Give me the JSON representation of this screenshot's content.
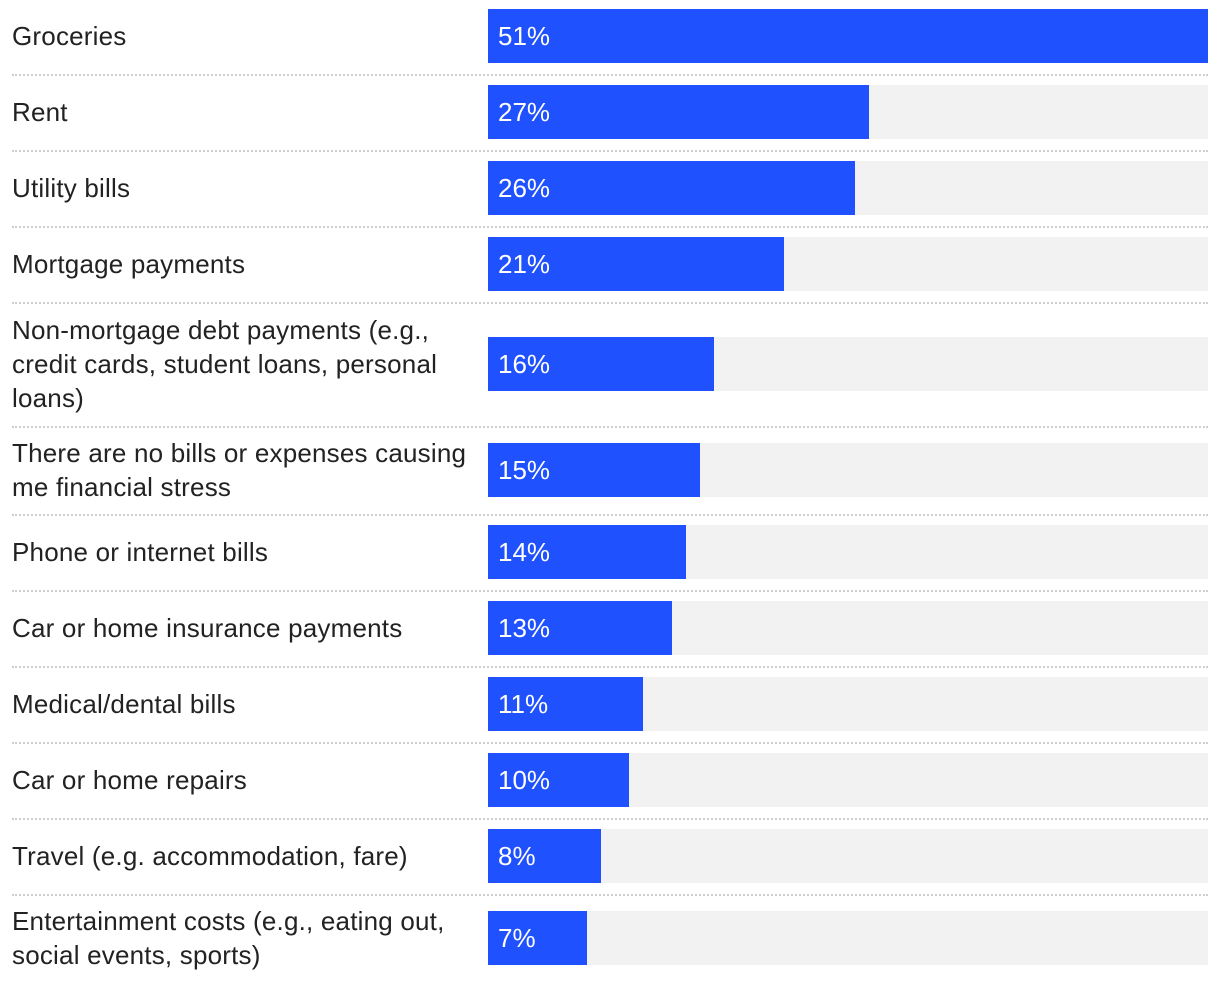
{
  "colors": {
    "bar": "#1f51ff",
    "track": "#f2f2f2",
    "divider": "#cfcfcf",
    "label_text": "#222222",
    "value_text": "#ffffff"
  },
  "chart_data": {
    "type": "bar",
    "orientation": "horizontal",
    "xlim": [
      0,
      51
    ],
    "grid": false,
    "categories": [
      "Groceries",
      "Rent",
      "Utility bills",
      "Mortgage payments",
      "Non-mortgage debt payments (e.g., credit cards, student loans, personal loans)",
      "There are no bills or expenses causing me financial stress",
      "Phone or internet bills",
      "Car or home insurance payments",
      "Medical/dental bills",
      "Car or home repairs",
      "Travel (e.g. accommodation, fare)",
      "Entertainment costs (e.g., eating out, social events, sports)"
    ],
    "values": [
      51,
      27,
      26,
      21,
      16,
      15,
      14,
      13,
      11,
      10,
      8,
      7
    ],
    "value_labels": [
      "51%",
      "27%",
      "26%",
      "21%",
      "16%",
      "15%",
      "14%",
      "13%",
      "11%",
      "10%",
      "8%",
      "7%"
    ]
  }
}
